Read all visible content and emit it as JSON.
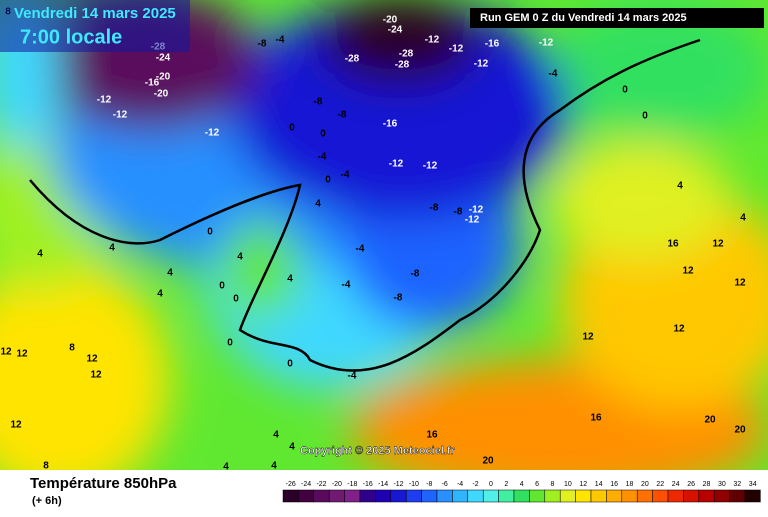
{
  "header": {
    "date": "Vendredi 14 mars 2025",
    "time": "7:00 locale",
    "run": "Run GEM 0 Z du Vendredi 14 mars 2025"
  },
  "copyright": "Copyright © 2025 Meteociel.fr",
  "footer": {
    "title": "Température 850hPa",
    "step": "(+ 6h)"
  },
  "colorbar": {
    "ticks": [
      -26,
      -24,
      -22,
      -20,
      -18,
      -16,
      -14,
      -12,
      -10,
      -8,
      -6,
      -4,
      -2,
      0,
      2,
      4,
      6,
      8,
      10,
      12,
      14,
      16,
      18,
      20,
      22,
      24,
      26,
      28,
      30,
      32,
      34
    ],
    "colors": [
      "#2a0028",
      "#420040",
      "#5a0a5c",
      "#701a74",
      "#80208a",
      "#30008c",
      "#2000b4",
      "#1818d4",
      "#1e3cf0",
      "#1e64ff",
      "#2890ff",
      "#30b4ff",
      "#40d8ff",
      "#50f0e8",
      "#40f0a0",
      "#30e060",
      "#60e830",
      "#a0f020",
      "#e0f020",
      "#ffe400",
      "#ffc800",
      "#ffac00",
      "#ff9000",
      "#ff7000",
      "#ff5000",
      "#f02800",
      "#d81000",
      "#b80000",
      "#900000",
      "#600000",
      "#200000"
    ]
  },
  "map_labels": [
    -28,
    -24,
    -20,
    -16,
    -20,
    -12,
    -12,
    -12,
    -8,
    -4,
    -28,
    -20,
    -24,
    -28,
    -28,
    -12,
    -12,
    -16,
    -12,
    -12,
    -8,
    -8,
    -16,
    -12,
    -12,
    -8,
    -8,
    -12,
    -12,
    -4,
    0,
    0,
    0,
    0,
    -4,
    -4,
    0,
    4,
    -4,
    -8,
    -8,
    -4,
    -4,
    0,
    4,
    4,
    16,
    12,
    12,
    12,
    12,
    12,
    16,
    16,
    20,
    20,
    20,
    12,
    12,
    12,
    12,
    12,
    8,
    4,
    4,
    4,
    4,
    0,
    0,
    0,
    0,
    4,
    4,
    4,
    4,
    4,
    4,
    8,
    8
  ]
}
